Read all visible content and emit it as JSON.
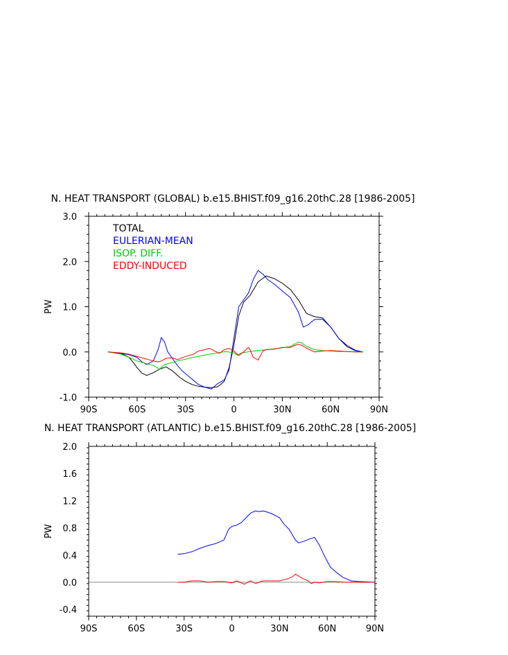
{
  "chart_data": [
    {
      "type": "line",
      "title": "N. HEAT TRANSPORT (GLOBAL) b.e15.BHIST.f09_g16.20thC.28 [1986-2005]",
      "xlabel": "",
      "ylabel": "PW",
      "xlim": [
        -90,
        90
      ],
      "ylim": [
        -1.0,
        3.0
      ],
      "xticks": [
        -90,
        -60,
        -30,
        0,
        30,
        60,
        90
      ],
      "xtick_labels": [
        "90S",
        "60S",
        "30S",
        "0",
        "30N",
        "60N",
        "90N"
      ],
      "yticks": [
        -1.0,
        0.0,
        1.0,
        2.0,
        3.0
      ],
      "ytick_labels": [
        "-1.0",
        "0.0",
        "1.0",
        "2.0",
        "3.0"
      ],
      "legend_position": "top-left",
      "series": [
        {
          "name": "TOTAL",
          "color": "#000000",
          "x": [
            -78,
            -70,
            -65,
            -62,
            -60,
            -57,
            -54,
            -50,
            -46,
            -42,
            -38,
            -34,
            -30,
            -26,
            -22,
            -18,
            -14,
            -10,
            -6,
            -3,
            0,
            3,
            6,
            10,
            15,
            20,
            25,
            30,
            35,
            40,
            45,
            50,
            55,
            60,
            65,
            70,
            75,
            80
          ],
          "y": [
            0,
            -0.03,
            -0.12,
            -0.25,
            -0.35,
            -0.47,
            -0.52,
            -0.46,
            -0.38,
            -0.33,
            -0.42,
            -0.55,
            -0.65,
            -0.72,
            -0.76,
            -0.78,
            -0.79,
            -0.77,
            -0.65,
            -0.35,
            0.15,
            0.8,
            1.1,
            1.25,
            1.55,
            1.68,
            1.62,
            1.52,
            1.38,
            1.15,
            0.85,
            0.78,
            0.75,
            0.55,
            0.3,
            0.12,
            0.03,
            0
          ]
        },
        {
          "name": "EULERIAN-MEAN",
          "color": "#0000ff",
          "x": [
            -78,
            -70,
            -65,
            -60,
            -57,
            -54,
            -50,
            -47,
            -45,
            -43,
            -41,
            -38,
            -35,
            -32,
            -30,
            -26,
            -22,
            -18,
            -14,
            -10,
            -6,
            -3,
            0,
            3,
            6,
            9,
            12,
            15,
            18,
            21,
            25,
            30,
            35,
            40,
            43,
            46,
            50,
            55,
            60,
            65,
            70,
            75,
            80
          ],
          "y": [
            0,
            -0.03,
            -0.06,
            -0.12,
            -0.22,
            -0.28,
            -0.2,
            0.05,
            0.32,
            0.22,
            0.0,
            -0.15,
            -0.3,
            -0.42,
            -0.48,
            -0.6,
            -0.72,
            -0.78,
            -0.82,
            -0.7,
            -0.62,
            -0.4,
            0.3,
            1.0,
            1.15,
            1.3,
            1.6,
            1.8,
            1.72,
            1.6,
            1.5,
            1.35,
            1.2,
            0.88,
            0.55,
            0.6,
            0.72,
            0.72,
            0.55,
            0.3,
            0.15,
            0.04,
            0
          ]
        },
        {
          "name": "ISOP. DIFF.",
          "color": "#00cc00",
          "x": [
            -78,
            -70,
            -65,
            -60,
            -55,
            -50,
            -46,
            -43,
            -40,
            -35,
            -30,
            -25,
            -20,
            -15,
            -10,
            -5,
            0,
            2,
            5,
            10,
            15,
            20,
            25,
            30,
            35,
            38,
            40,
            42,
            45,
            50,
            55,
            60,
            65,
            70,
            75,
            80
          ],
          "y": [
            0,
            -0.05,
            -0.12,
            -0.2,
            -0.25,
            -0.3,
            -0.38,
            -0.28,
            -0.25,
            -0.2,
            -0.16,
            -0.12,
            -0.08,
            -0.05,
            -0.02,
            0.01,
            -0.02,
            -0.07,
            -0.02,
            0.01,
            0.03,
            0.05,
            0.07,
            0.09,
            0.12,
            0.18,
            0.22,
            0.2,
            0.12,
            0.05,
            0.03,
            0.02,
            0.01,
            0.01,
            0,
            0
          ]
        },
        {
          "name": "EDDY-INDUCED",
          "color": "#ff0000",
          "x": [
            -78,
            -70,
            -65,
            -60,
            -55,
            -50,
            -47,
            -45,
            -42,
            -38,
            -35,
            -30,
            -25,
            -22,
            -18,
            -15,
            -12,
            -9,
            -6,
            -3,
            0,
            3,
            6,
            9,
            10,
            12,
            15,
            18,
            20,
            25,
            30,
            35,
            38,
            40,
            42,
            45,
            50,
            55,
            60,
            65,
            70,
            75,
            80
          ],
          "y": [
            0,
            -0.02,
            -0.05,
            -0.1,
            -0.15,
            -0.2,
            -0.22,
            -0.2,
            -0.14,
            -0.13,
            -0.17,
            -0.1,
            -0.05,
            0.02,
            0.05,
            0.08,
            0.02,
            -0.03,
            0.05,
            0.08,
            0.02,
            -0.08,
            0.0,
            0.1,
            0.05,
            -0.12,
            -0.18,
            0.02,
            0.05,
            0.06,
            0.1,
            0.1,
            0.15,
            0.17,
            0.15,
            0.08,
            0.0,
            0.02,
            0.03,
            0.02,
            0.01,
            0.0,
            0
          ]
        }
      ]
    },
    {
      "type": "line",
      "title": "N. HEAT TRANSPORT (ATLANTIC) b.e15.BHIST.f09_g16.20thC.28 [1986-2005]",
      "xlabel": "",
      "ylabel": "PW",
      "xlim": [
        -90,
        90
      ],
      "ylim": [
        -0.5,
        2.0
      ],
      "xticks": [
        -90,
        -60,
        -30,
        0,
        30,
        60,
        90
      ],
      "xtick_labels": [
        "90S",
        "60S",
        "30S",
        "0",
        "30N",
        "60N",
        "90N"
      ],
      "yticks": [
        -0.4,
        0.0,
        0.4,
        0.8,
        1.2,
        1.6,
        2.0
      ],
      "ytick_labels": [
        "-0.4",
        "0.0",
        "0.4",
        "0.8",
        "1.2",
        "1.6",
        "2.0"
      ],
      "zero_line": true,
      "series": [
        {
          "name": "EULERIAN-MEAN",
          "color": "#0000ff",
          "x": [
            -34,
            -30,
            -25,
            -20,
            -15,
            -10,
            -5,
            -2,
            0,
            3,
            6,
            9,
            12,
            15,
            17,
            20,
            25,
            30,
            33,
            36,
            40,
            42,
            45,
            48,
            52,
            55,
            58,
            62,
            66,
            70,
            75,
            80,
            85,
            90
          ],
          "y": [
            0.41,
            0.42,
            0.45,
            0.5,
            0.54,
            0.57,
            0.62,
            0.78,
            0.82,
            0.84,
            0.88,
            0.95,
            1.02,
            1.05,
            1.04,
            1.05,
            1.01,
            0.95,
            0.85,
            0.78,
            0.62,
            0.58,
            0.6,
            0.63,
            0.66,
            0.55,
            0.4,
            0.22,
            0.14,
            0.07,
            0.02,
            0.01,
            0.005,
            0
          ]
        },
        {
          "name": "EDDY-INDUCED",
          "color": "#ff0000",
          "x": [
            -34,
            -30,
            -25,
            -20,
            -15,
            -10,
            -5,
            0,
            3,
            5,
            8,
            10,
            12,
            15,
            18,
            20,
            25,
            30,
            35,
            38,
            40,
            42,
            45,
            48,
            50,
            52,
            55,
            60,
            65,
            70,
            75,
            80,
            85,
            90
          ],
          "y": [
            0.0,
            0.0,
            0.02,
            0.02,
            0.0,
            0.01,
            0.01,
            -0.01,
            0.02,
            0.0,
            -0.03,
            0.0,
            0.02,
            -0.02,
            0.01,
            0.02,
            0.02,
            0.02,
            0.05,
            0.08,
            0.12,
            0.09,
            0.05,
            0.02,
            -0.02,
            0.0,
            -0.01,
            0.01,
            0.01,
            0.0,
            0.0,
            0.0,
            0.0,
            0
          ]
        }
      ]
    }
  ]
}
